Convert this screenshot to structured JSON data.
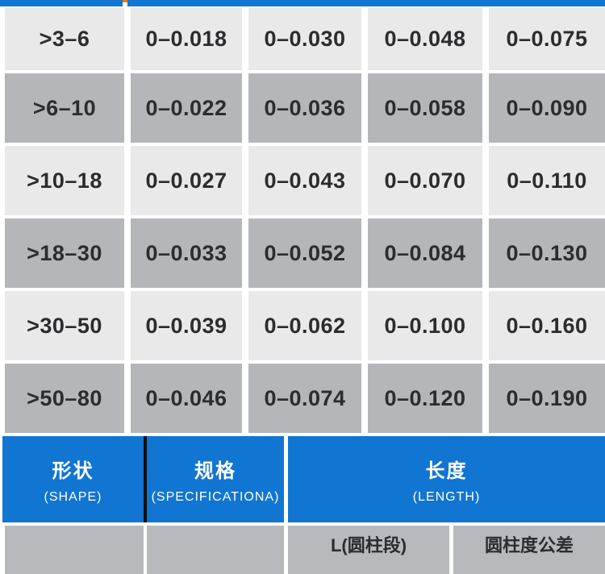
{
  "colors": {
    "blue": "#1175d2",
    "row_light": "#e9e9ea",
    "row_dark": "#b4b6b9",
    "row_bottom": "#b8b9bc",
    "text_dark": "#2c2c2e",
    "dark_separator": "#101014",
    "orange_tick": "#ee7d18"
  },
  "chart_data": {
    "type": "table",
    "title": "",
    "columns": [
      "size-range",
      "tolerance-1",
      "tolerance-2",
      "tolerance-3",
      "tolerance-4"
    ],
    "rows": [
      [
        ">3–6",
        "0–0.018",
        "0–0.030",
        "0–0.048",
        "0–0.075"
      ],
      [
        ">6–10",
        "0–0.022",
        "0–0.036",
        "0–0.058",
        "0–0.090"
      ],
      [
        ">10–18",
        "0–0.027",
        "0–0.043",
        "0–0.070",
        "0–0.110"
      ],
      [
        ">18–30",
        "0–0.033",
        "0–0.052",
        "0–0.084",
        "0–0.130"
      ],
      [
        ">30–50",
        "0–0.039",
        "0–0.062",
        "0–0.100",
        "0–0.160"
      ],
      [
        ">50–80",
        "0–0.046",
        "0–0.074",
        "0–0.120",
        "0–0.190"
      ]
    ],
    "layout_hints": {
      "alternating_row_colors": true,
      "header_band_below": true
    }
  },
  "spec_header": {
    "shape": {
      "zh": "形状",
      "en": "(SHAPE)"
    },
    "specification": {
      "zh": "规格",
      "en": "(SPECIFICATIONA)"
    },
    "length": {
      "zh": "长度",
      "en": "(LENGTH)"
    }
  },
  "partial_bottom_row": {
    "length_sub_left": "L(圆柱段)",
    "length_sub_right": "圆柱度公差"
  }
}
